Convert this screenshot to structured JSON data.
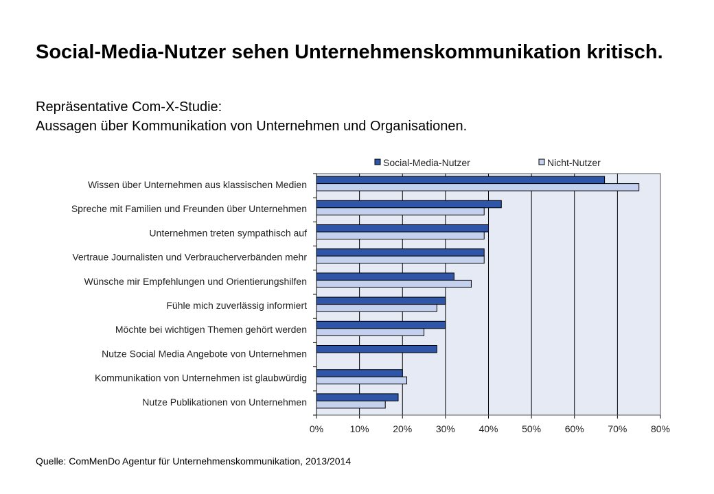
{
  "title": "Social-Media-Nutzer sehen Unternehmenskommunikation kritisch.",
  "subtitle_line1": "Repräsentative Com-X-Studie:",
  "subtitle_line2": "Aussagen über Kommunikation von Unternehmen und Organisationen.",
  "source": "Quelle:  ComMenDo Agentur für Unternehmenskommunikation,  2013/2014",
  "colors": {
    "series1": "#2e55a8",
    "series2": "#c3d0ee",
    "plot_bg": "#e6eaf5"
  },
  "chart_data": {
    "type": "bar",
    "orientation": "horizontal",
    "title": "",
    "xlabel": "",
    "ylabel": "",
    "xlim": [
      0,
      80
    ],
    "x_unit": "%",
    "grid": true,
    "legend_position": "top",
    "ticks": [
      "0%",
      "10%",
      "20%",
      "30%",
      "40%",
      "50%",
      "60%",
      "70%",
      "80%"
    ],
    "categories": [
      "Wissen über Unternehmen aus klassischen Medien",
      "Spreche mit Familien und Freunden über Unternehmen",
      "Unternehmen treten sympathisch auf",
      "Vertraue Journalisten und Verbraucherverbänden mehr",
      "Wünsche mir Empfehlungen und Orientierungshilfen",
      "Fühle mich zuverlässig informiert",
      "Möchte bei wichtigen Themen gehört werden",
      "Nutze Social Media Angebote von Unternehmen",
      "Kommunikation von Unternehmen ist glaubwürdig",
      "Nutze Publikationen von Unternehmen"
    ],
    "series": [
      {
        "name": "Social-Media-Nutzer",
        "values": [
          67,
          43,
          40,
          39,
          32,
          30,
          30,
          28,
          20,
          19
        ]
      },
      {
        "name": "Nicht-Nutzer",
        "values": [
          75,
          39,
          39,
          39,
          36,
          28,
          25,
          0,
          21,
          16
        ]
      }
    ]
  }
}
